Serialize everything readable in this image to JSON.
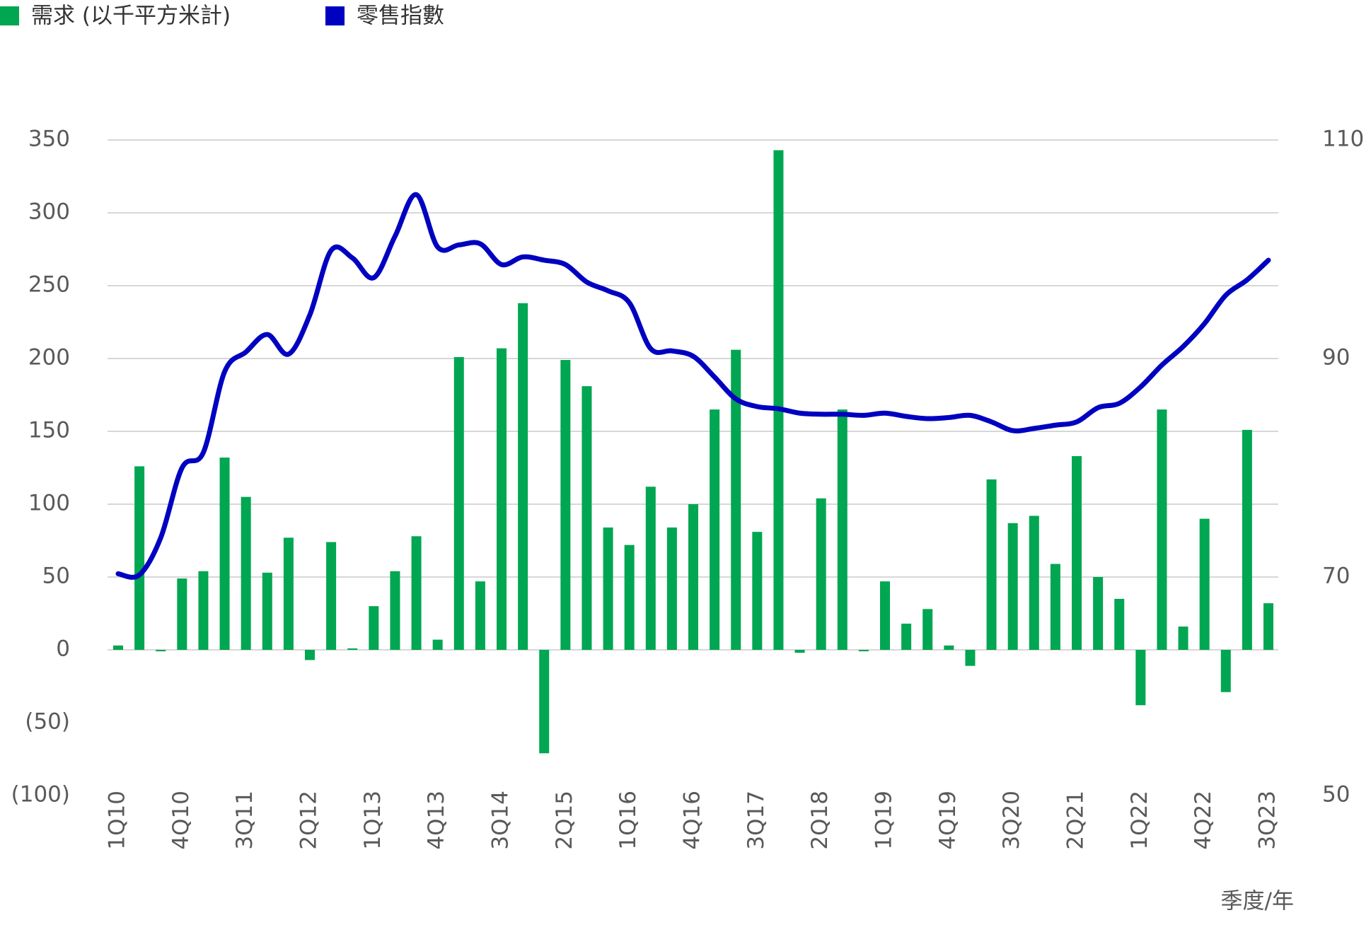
{
  "chart_data": {
    "type": "bar_line",
    "x_label": "季度/年",
    "categories": [
      "1Q10",
      null,
      null,
      "4Q10",
      null,
      null,
      "3Q11",
      null,
      null,
      "2Q12",
      null,
      null,
      "1Q13",
      null,
      null,
      "4Q13",
      null,
      null,
      "3Q14",
      null,
      null,
      "2Q15",
      null,
      null,
      "1Q16",
      null,
      null,
      "4Q16",
      null,
      null,
      "3Q17",
      null,
      null,
      "2Q18",
      null,
      null,
      "1Q19",
      null,
      null,
      "4Q19",
      null,
      null,
      "3Q20",
      null,
      null,
      "2Q21",
      null,
      null,
      "1Q22",
      null,
      null,
      "4Q22",
      null,
      null,
      "3Q23"
    ],
    "series": [
      {
        "name": "需求 (以千平方米計)",
        "type": "bar",
        "color": "#00a651",
        "values": [
          3,
          126,
          -1,
          49,
          54,
          132,
          105,
          53,
          77,
          -7,
          74,
          1,
          30,
          54,
          78,
          7,
          201,
          47,
          207,
          238,
          -71,
          199,
          181,
          84,
          72,
          112,
          84,
          100,
          165,
          206,
          81,
          343,
          -2,
          104,
          165,
          -1,
          47,
          18,
          28,
          3,
          -11,
          117,
          87,
          92,
          59,
          133,
          50,
          35,
          -38,
          165,
          16,
          90,
          -29,
          151,
          32
        ]
      },
      {
        "name": "零售指數",
        "type": "line",
        "axis": "y2",
        "color": "#0000c0",
        "values": [
          70.3,
          70.2,
          73.6,
          80,
          81.4,
          88.8,
          90.6,
          92.2,
          90.4,
          94,
          99.9,
          99.2,
          97.4,
          101.2,
          105,
          100.2,
          100.4,
          100.5,
          98.6,
          99.3,
          99,
          98.6,
          97,
          96.2,
          95.1,
          90.9,
          90.7,
          90.2,
          88.3,
          86.3,
          85.6,
          85.4,
          85,
          84.9,
          84.9,
          84.8,
          85,
          84.7,
          84.5,
          84.6,
          84.8,
          84.2,
          83.4,
          83.6,
          83.9,
          84.2,
          85.5,
          85.9,
          87.4,
          89.4,
          91.1,
          93.2,
          95.8,
          97.2,
          99
        ]
      }
    ],
    "ylim": [
      -100,
      350
    ],
    "yticks": [
      {
        "value": -100,
        "label": "(100)"
      },
      {
        "value": -50,
        "label": "(50)"
      },
      0,
      50,
      100,
      150,
      200,
      250,
      300,
      350
    ],
    "y2lim": [
      50,
      110
    ],
    "y2ticks": [
      50,
      70,
      90,
      110
    ],
    "grid": true
  }
}
